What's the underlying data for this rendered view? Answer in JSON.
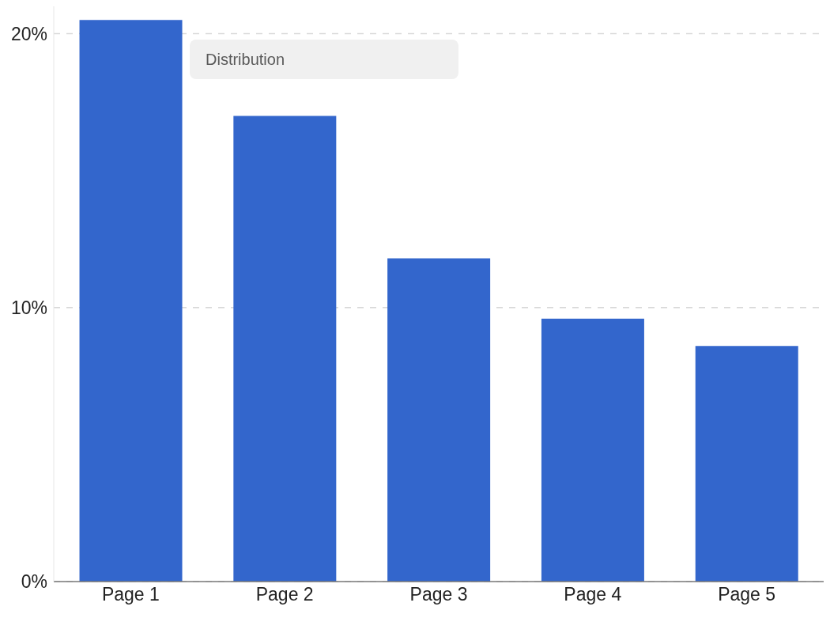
{
  "chart_data": {
    "type": "bar",
    "categories": [
      "Page 1",
      "Page 2",
      "Page 3",
      "Page 4",
      "Page 5"
    ],
    "values": [
      20.5,
      17.0,
      11.8,
      9.6,
      8.6
    ],
    "color": "#3366cc",
    "ylim": [
      0,
      21
    ],
    "yticks": [
      {
        "value": 0,
        "label": "0%"
      },
      {
        "value": 10,
        "label": "10%"
      },
      {
        "value": 20,
        "label": "20%"
      }
    ],
    "grid": "y",
    "annotations": [
      "Distribution"
    ]
  }
}
